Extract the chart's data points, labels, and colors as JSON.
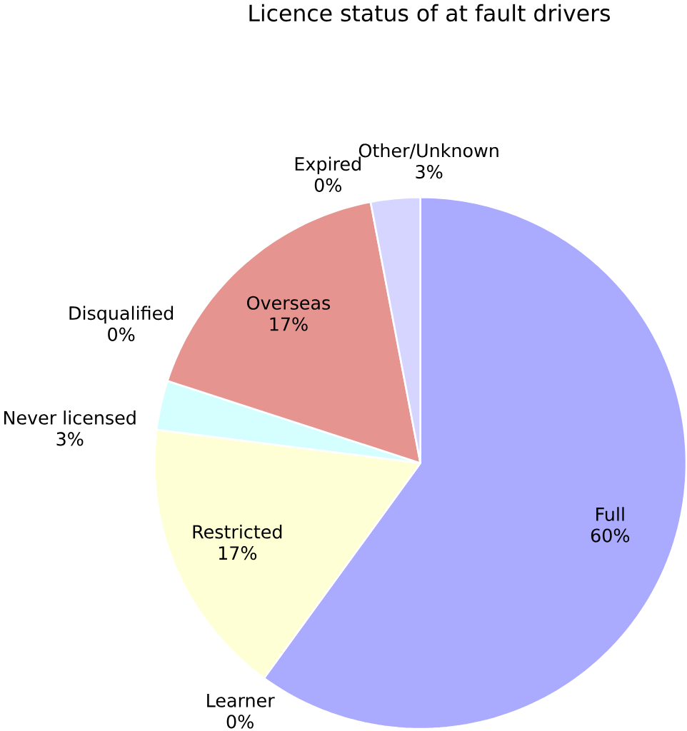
{
  "chart_data": {
    "type": "pie",
    "title": "Licence status of at fault drivers",
    "categories": [
      "Full",
      "Learner",
      "Restricted",
      "Never licensed",
      "Disqualified",
      "Overseas",
      "Expired",
      "Other/Unknown"
    ],
    "values": [
      60,
      0,
      17,
      3,
      0,
      17,
      0,
      3
    ],
    "value_labels": [
      "60%",
      "0%",
      "17%",
      "3%",
      "0%",
      "17%",
      "0%",
      "3%"
    ],
    "colors": [
      "#aaaaff",
      "#ffd5ff",
      "#ffffd5",
      "#d5ffff",
      "#ffd5d5",
      "#e6948f",
      "#d5ffd5",
      "#d5d5ff"
    ]
  }
}
